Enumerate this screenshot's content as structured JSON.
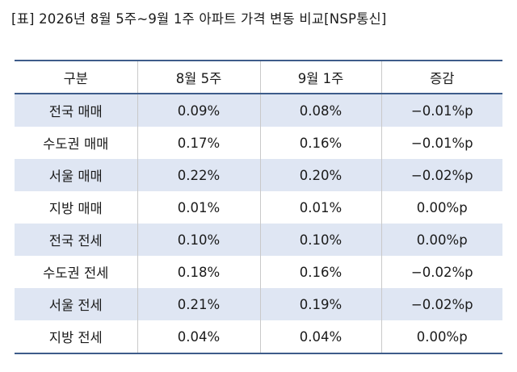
{
  "caption": "[표] 2026년 8월 5주~9월 1주 아파트 가격 변동 비교[NSP통신]",
  "table": {
    "headers": [
      "구분",
      "8월 5주",
      "9월 1주",
      "증감"
    ],
    "rows": [
      [
        "전국 매매",
        "0.09%",
        "0.08%",
        "−0.01%p"
      ],
      [
        "수도권 매매",
        "0.17%",
        "0.16%",
        "−0.01%p"
      ],
      [
        "서울 매매",
        "0.22%",
        "0.20%",
        "−0.02%p"
      ],
      [
        "지방 매매",
        "0.01%",
        "0.01%",
        "0.00%p"
      ],
      [
        "전국 전세",
        "0.10%",
        "0.10%",
        "0.00%p"
      ],
      [
        "수도권 전세",
        "0.18%",
        "0.16%",
        "−0.02%p"
      ],
      [
        "서울 전세",
        "0.21%",
        "0.19%",
        "−0.02%p"
      ],
      [
        "지방 전세",
        "0.04%",
        "0.04%",
        "0.00%p"
      ]
    ]
  },
  "colors": {
    "rule": "#3e5c8a",
    "shade": "#dfe6f3"
  }
}
